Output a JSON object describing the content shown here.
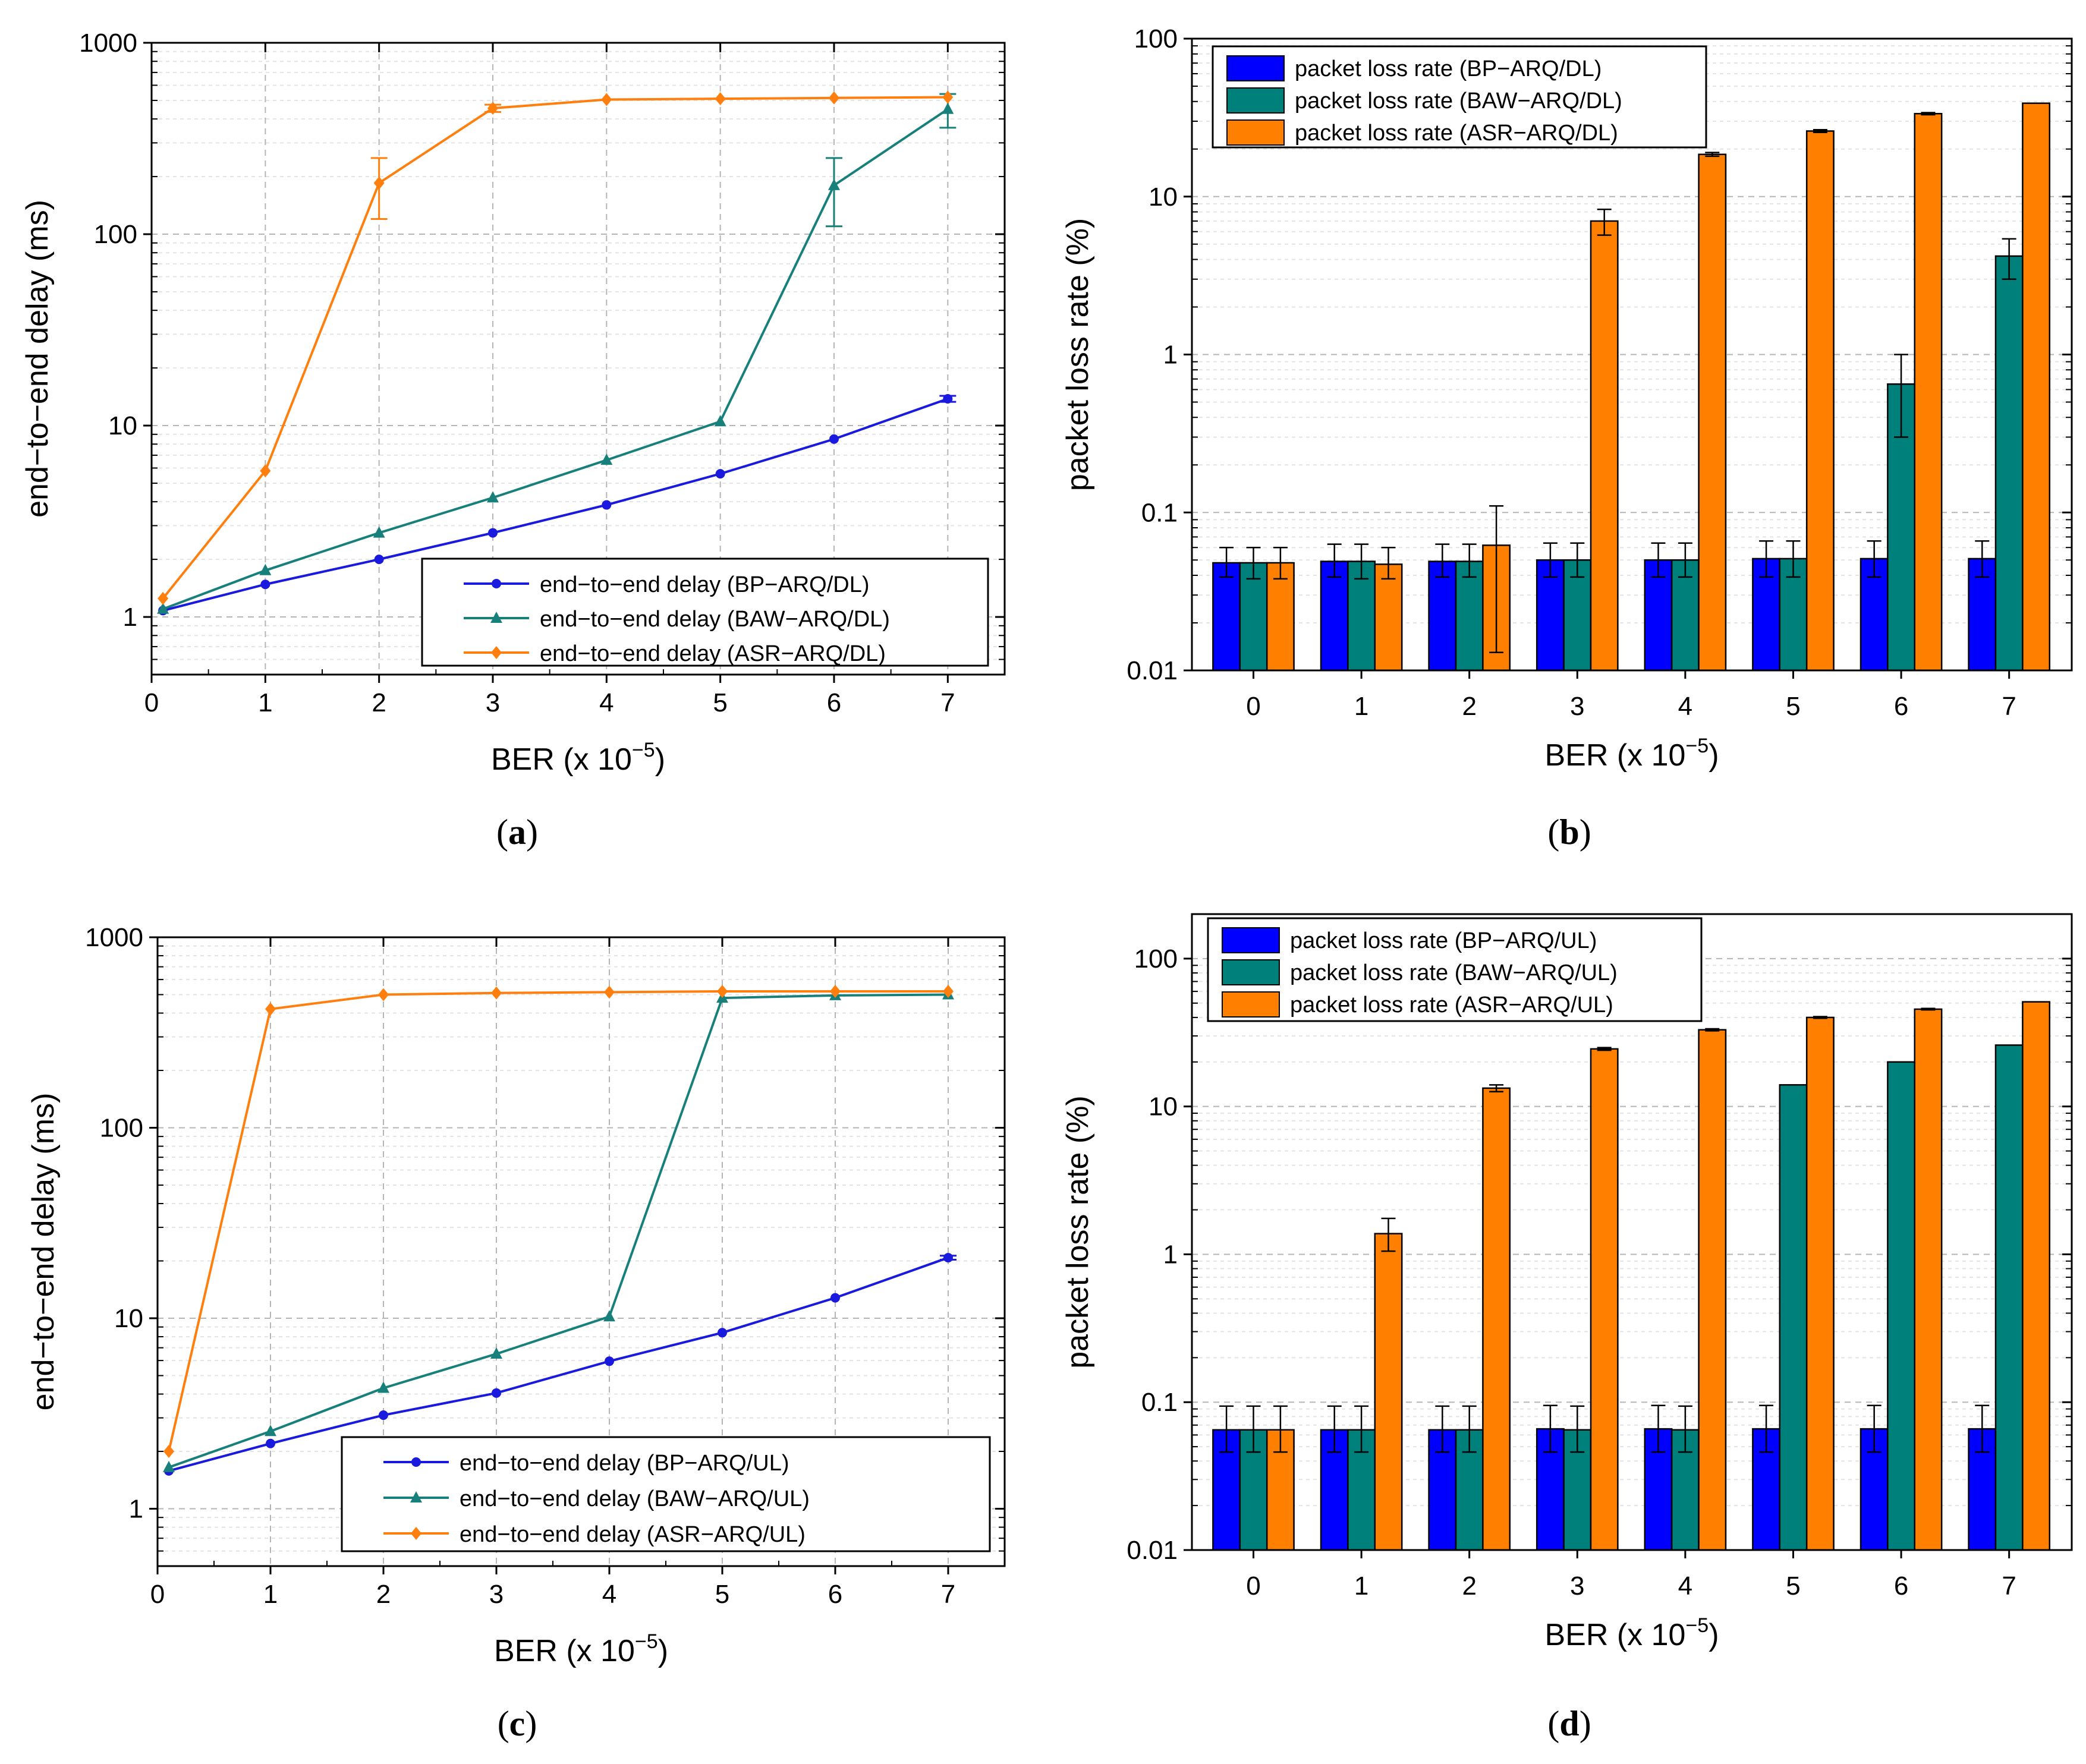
{
  "chart_data": [
    {
      "id": "a",
      "type": "line",
      "caption": {
        "open": "(",
        "letter": "a",
        "close": ")"
      },
      "xlabel": "BER (x 10",
      "xlabel_exp": "−5",
      "xlabel_close": ")",
      "ylabel": "end−to−end delay (ms)",
      "yscale": "log",
      "xlim": [
        0,
        7.5
      ],
      "ylim": [
        0.5,
        1000
      ],
      "xticks": [
        0,
        1,
        2,
        3,
        4,
        5,
        6,
        7
      ],
      "yticks": [
        1,
        10,
        100,
        1000
      ],
      "ytick_labels": [
        "1",
        "10",
        "100",
        "1000"
      ],
      "x": [
        0.1,
        1,
        2,
        3,
        4,
        5,
        6,
        7
      ],
      "series": [
        {
          "name": "end−to−end delay (BP−ARQ/DL)",
          "color": "#1a1adf",
          "marker": "circle",
          "values": [
            1.08,
            1.48,
            2.0,
            2.75,
            3.85,
            5.6,
            8.5,
            13.8
          ],
          "errors": [
            0,
            0,
            0,
            0,
            0,
            0,
            0,
            0.5
          ]
        },
        {
          "name": "end−to−end delay (BAW−ARQ/DL)",
          "color": "#18807a",
          "marker": "triangle",
          "values": [
            1.1,
            1.75,
            2.75,
            4.2,
            6.6,
            10.5,
            180,
            450
          ],
          "errors": [
            0,
            0,
            0,
            0,
            0,
            0,
            70,
            90
          ]
        },
        {
          "name": "end−to−end delay (ASR−ARQ/DL)",
          "color": "#ff7f0e",
          "marker": "diamond",
          "values": [
            1.25,
            5.8,
            185,
            455,
            505,
            510,
            515,
            520
          ],
          "errors": [
            0,
            0,
            65,
            20,
            0,
            0,
            0,
            0
          ]
        }
      ],
      "legend_location": "bottom-right"
    },
    {
      "id": "b",
      "type": "bar",
      "caption": {
        "open": "(",
        "letter": "b",
        "close": ")"
      },
      "xlabel": "BER (x 10",
      "xlabel_exp": "−5",
      "xlabel_close": ")",
      "ylabel": "packet loss rate (%)",
      "yscale": "log",
      "ylim": [
        0.01,
        100
      ],
      "yticks": [
        0.01,
        0.1,
        1,
        10,
        100
      ],
      "ytick_labels": [
        "0.01",
        "0.1",
        "1",
        "10",
        "100"
      ],
      "categories": [
        "0",
        "1",
        "2",
        "3",
        "4",
        "5",
        "6",
        "7"
      ],
      "series": [
        {
          "name": "packet loss rate (BP−ARQ/DL)",
          "color": "#0000ff",
          "values": [
            0.048,
            0.049,
            0.049,
            0.05,
            0.05,
            0.051,
            0.051,
            0.051
          ],
          "err_low": [
            0.039,
            0.039,
            0.039,
            0.039,
            0.039,
            0.039,
            0.039,
            0.039
          ],
          "err_high": [
            0.06,
            0.063,
            0.063,
            0.064,
            0.064,
            0.066,
            0.066,
            0.066
          ]
        },
        {
          "name": "packet loss rate (BAW−ARQ/DL)",
          "color": "#00807b",
          "values": [
            0.048,
            0.049,
            0.049,
            0.05,
            0.05,
            0.051,
            0.65,
            4.2
          ],
          "err_low": [
            0.038,
            0.038,
            0.039,
            0.039,
            0.039,
            0.039,
            0.3,
            3.0
          ],
          "err_high": [
            0.06,
            0.063,
            0.063,
            0.064,
            0.064,
            0.066,
            1.0,
            5.4
          ]
        },
        {
          "name": "packet loss rate (ASR−ARQ/DL)",
          "color": "#ff7f00",
          "values": [
            0.048,
            0.047,
            0.062,
            7.0,
            18.5,
            26.0,
            33.5,
            39.0
          ],
          "err_low": [
            0.038,
            0.038,
            0.013,
            5.7,
            18.0,
            25.5,
            33.0,
            39.0
          ],
          "err_high": [
            0.06,
            0.06,
            0.11,
            8.3,
            19.0,
            26.5,
            34.0,
            39.0
          ]
        }
      ],
      "legend_location": "top-left"
    },
    {
      "id": "c",
      "type": "line",
      "caption": {
        "open": "(",
        "letter": "c",
        "close": ")"
      },
      "xlabel": "BER (x 10",
      "xlabel_exp": "−5",
      "xlabel_close": ")",
      "ylabel": "end−to−end delay (ms)",
      "yscale": "log",
      "xlim": [
        0,
        7.5
      ],
      "ylim": [
        0.5,
        1000
      ],
      "xticks": [
        0,
        1,
        2,
        3,
        4,
        5,
        6,
        7
      ],
      "yticks": [
        1,
        10,
        100,
        1000
      ],
      "ytick_labels": [
        "1",
        "10",
        "100",
        "1000"
      ],
      "x": [
        0.1,
        1,
        2,
        3,
        4,
        5,
        6,
        7
      ],
      "series": [
        {
          "name": "end−to−end delay (BP−ARQ/UL)",
          "color": "#1a1adf",
          "marker": "circle",
          "values": [
            1.58,
            2.2,
            3.1,
            4.05,
            5.95,
            8.4,
            12.8,
            20.8
          ],
          "errors": [
            0,
            0,
            0,
            0,
            0,
            0,
            0,
            0.5
          ]
        },
        {
          "name": "end−to−end delay (BAW−ARQ/UL)",
          "color": "#18807a",
          "marker": "triangle",
          "values": [
            1.65,
            2.55,
            4.3,
            6.5,
            10.2,
            480,
            495,
            500
          ],
          "errors": [
            0,
            0,
            0,
            0,
            0,
            0,
            0,
            0
          ]
        },
        {
          "name": "end−to−end delay (ASR−ARQ/UL)",
          "color": "#ff7f0e",
          "marker": "diamond",
          "values": [
            2.0,
            420,
            500,
            510,
            515,
            520,
            520,
            520
          ],
          "errors": [
            0,
            0,
            0,
            0,
            0,
            0,
            0,
            0
          ]
        }
      ],
      "legend_location": "bottom-right"
    },
    {
      "id": "d",
      "type": "bar",
      "caption": {
        "open": "(",
        "letter": "d",
        "close": ")"
      },
      "xlabel": "BER (x 10",
      "xlabel_exp": "−5",
      "xlabel_close": ")",
      "ylabel": "packet loss rate (%)",
      "yscale": "log",
      "ylim": [
        0.01,
        200
      ],
      "yticks": [
        0.01,
        0.1,
        1,
        10,
        100
      ],
      "ytick_labels": [
        "0.01",
        "0.1",
        "1",
        "10",
        "100"
      ],
      "categories": [
        "0",
        "1",
        "2",
        "3",
        "4",
        "5",
        "6",
        "7"
      ],
      "series": [
        {
          "name": "packet loss rate (BP−ARQ/UL)",
          "color": "#0000ff",
          "values": [
            0.065,
            0.065,
            0.065,
            0.066,
            0.066,
            0.066,
            0.066,
            0.066
          ],
          "err_low": [
            0.046,
            0.046,
            0.046,
            0.046,
            0.046,
            0.046,
            0.046,
            0.046
          ],
          "err_high": [
            0.094,
            0.094,
            0.094,
            0.095,
            0.095,
            0.095,
            0.095,
            0.095
          ]
        },
        {
          "name": "packet loss rate (BAW−ARQ/UL)",
          "color": "#00807b",
          "values": [
            0.065,
            0.065,
            0.065,
            0.065,
            0.065,
            14.0,
            20.0,
            26.0
          ],
          "err_low": [
            0.046,
            0.046,
            0.046,
            0.046,
            0.046,
            14.0,
            20.0,
            26.0
          ],
          "err_high": [
            0.094,
            0.094,
            0.094,
            0.094,
            0.094,
            14.0,
            20.0,
            26.0
          ]
        },
        {
          "name": "packet loss rate (ASR−ARQ/UL)",
          "color": "#ff7f00",
          "values": [
            0.065,
            1.38,
            13.3,
            24.5,
            33.0,
            40.0,
            45.5,
            51.0
          ],
          "err_low": [
            0.046,
            1.05,
            12.6,
            24.0,
            32.5,
            39.5,
            45.0,
            51.0
          ],
          "err_high": [
            0.094,
            1.75,
            14.0,
            25.0,
            33.5,
            40.5,
            46.0,
            51.0
          ]
        }
      ],
      "legend_location": "top-left"
    }
  ]
}
